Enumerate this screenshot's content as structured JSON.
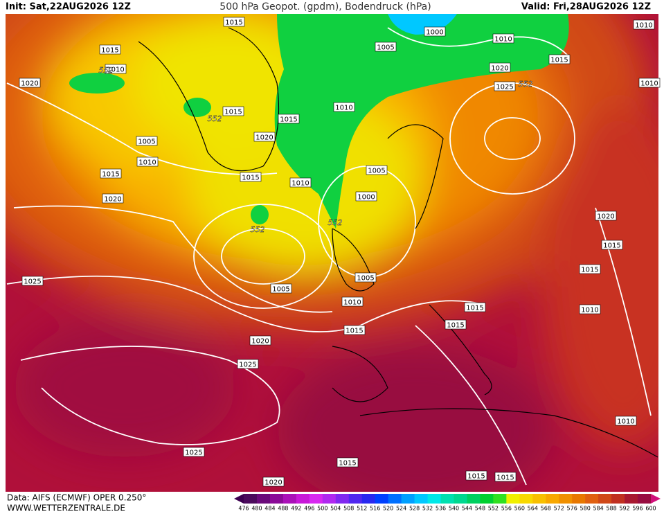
{
  "header": {
    "init": "Init: Sat,22AUG2026 12Z",
    "title": "500 hPa Geopot. (gpdm), Bodendruck (hPa)",
    "valid": "Valid: Fri,28AUG2026 12Z"
  },
  "footer": {
    "source": "Data: AIFS (ECMWF) OPER 0.250°",
    "site": "WWW.WETTERZENTRALE.DE"
  },
  "isobar_labels": [
    "1015",
    "1000",
    "1005",
    "1010",
    "1015",
    "1010",
    "1020",
    "1015",
    "1020",
    "1025",
    "1010",
    "1010",
    "1015",
    "1015",
    "1010",
    "1020",
    "1005",
    "1010",
    "1015",
    "1015",
    "1010",
    "1005",
    "1000",
    "1020",
    "1020",
    "1015",
    "1015",
    "1025",
    "1005",
    "1005",
    "1010",
    "1015",
    "1010",
    "1015",
    "1015",
    "1020",
    "1025",
    "1010",
    "1025",
    "1015",
    "1015",
    "1015",
    "1020"
  ],
  "height_labels": [
    "552",
    "552",
    "552",
    "552",
    "552"
  ],
  "colorbar": {
    "labels": [
      476,
      480,
      484,
      488,
      492,
      496,
      500,
      504,
      508,
      512,
      516,
      520,
      524,
      528,
      532,
      536,
      540,
      544,
      548,
      552,
      556,
      560,
      564,
      568,
      572,
      576,
      580,
      584,
      588,
      592,
      596,
      600
    ],
    "colors": [
      "#4b0a5c",
      "#6a0a7a",
      "#8a0a98",
      "#aa10b8",
      "#c818d8",
      "#d828f0",
      "#b028f0",
      "#8028f0",
      "#5028f0",
      "#2828f0",
      "#0040ff",
      "#0070ff",
      "#00a0ff",
      "#00c8ff",
      "#00e8e8",
      "#00e0b0",
      "#00d890",
      "#00d060",
      "#00d030",
      "#30e020",
      "#f0f000",
      "#f8d800",
      "#f8c000",
      "#f8a800",
      "#f09000",
      "#e87800",
      "#e06010",
      "#d04818",
      "#c03020",
      "#a81830",
      "#980c40"
    ]
  }
}
